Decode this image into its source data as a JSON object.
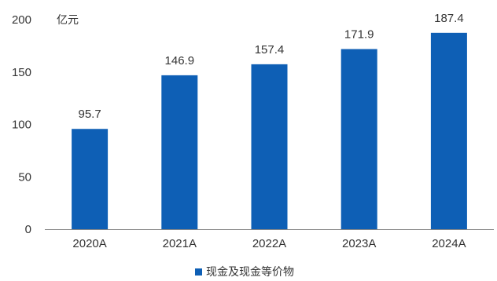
{
  "chart_data": {
    "type": "bar",
    "unit": "亿元",
    "categories": [
      "2020A",
      "2021A",
      "2022A",
      "2023A",
      "2024A"
    ],
    "series": [
      {
        "name": "现金及现金等价物",
        "values": [
          95.7,
          146.9,
          157.4,
          171.9,
          187.4
        ],
        "labels": [
          "95.7",
          "146.9",
          "157.4",
          "171.9",
          "187.4"
        ],
        "color": "#0E5FB5"
      }
    ],
    "ylim": [
      0,
      200
    ],
    "yticks": [
      0,
      50,
      100,
      150,
      200
    ],
    "grid": false,
    "legend_position": "bottom-center"
  }
}
